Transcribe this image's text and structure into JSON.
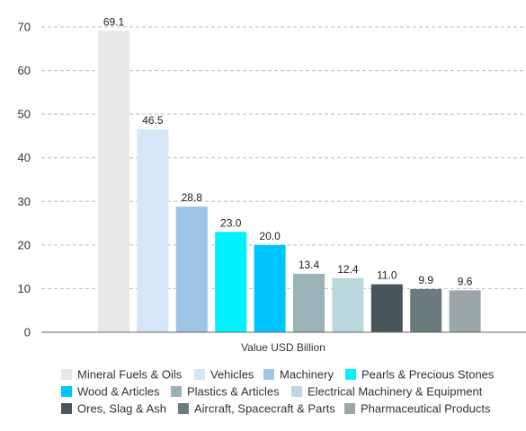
{
  "chart_data": {
    "type": "bar",
    "xlabel": "Value USD Billion",
    "ylabel": "",
    "ylim": [
      0,
      70
    ],
    "yticks": [
      0,
      10,
      20,
      30,
      40,
      50,
      60,
      70
    ],
    "grid": true,
    "legend_position": "bottom",
    "categories": [
      "Mineral Fuels & Oils",
      "Vehicles",
      "Machinery",
      "Pearls & Precious Stones",
      "Wood & Articles",
      "Plastics & Articles",
      "Electrical Machinery & Equipment",
      "Ores, Slag & Ash",
      "Aircraft, Spacecraft & Parts",
      "Pharmaceutical Products"
    ],
    "values": [
      69.1,
      46.5,
      28.8,
      23.0,
      20.0,
      13.4,
      12.4,
      11.0,
      9.9,
      9.6
    ],
    "value_labels": [
      "69.1",
      "46.5",
      "28.8",
      "23.0",
      "20.0",
      "13.4",
      "12.4",
      "11.0",
      "9.9",
      "9.6"
    ],
    "colors": [
      "#e8e8e8",
      "#d4e6f7",
      "#9ec4e6",
      "#00f2ff",
      "#00c4ff",
      "#9ab3b6",
      "#b8d8de",
      "#48565b",
      "#6b7b7d",
      "#9ba6a8"
    ]
  }
}
